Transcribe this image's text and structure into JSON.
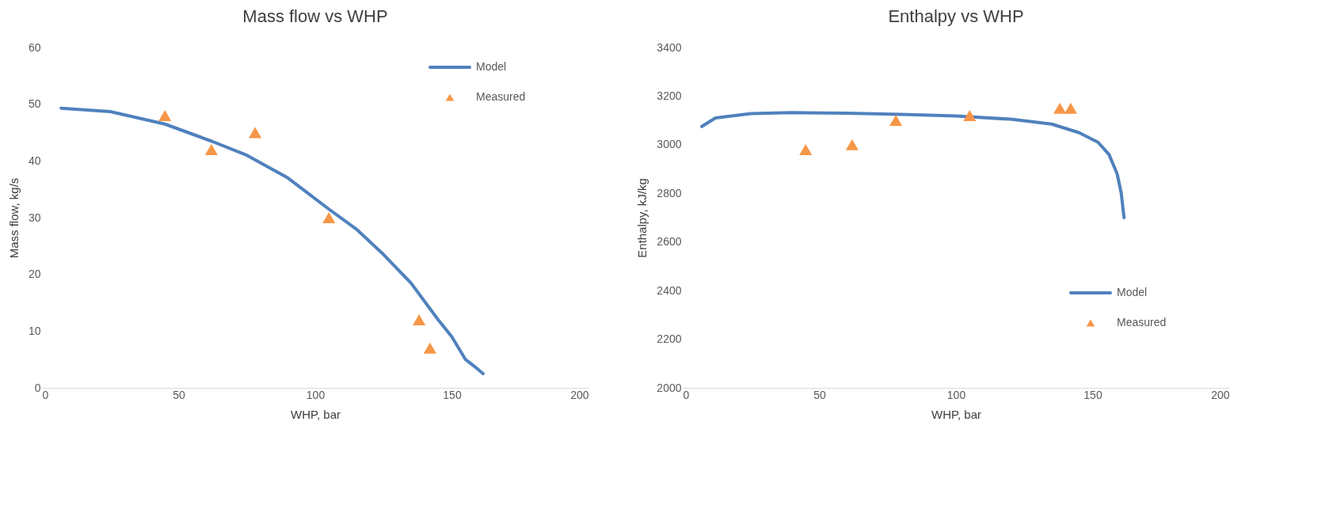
{
  "chart_data": [
    {
      "type": "line",
      "title": "Mass flow vs WHP",
      "xlabel": "WHP, bar",
      "ylabel": "Mass flow, kg/s",
      "xlim": [
        0,
        200
      ],
      "xticks": [
        0,
        50,
        100,
        150,
        200
      ],
      "ylim": [
        0,
        60
      ],
      "yticks": [
        0,
        10,
        20,
        30,
        40,
        50,
        60
      ],
      "grid": false,
      "legend": "top right",
      "series": [
        {
          "name": "Model",
          "type": "line",
          "color": "#4f81bd",
          "line_style": "solid",
          "x": [
            7,
            25,
            45,
            62,
            75,
            90,
            105,
            115,
            125,
            135,
            145,
            150,
            155,
            159,
            161.4
          ],
          "values": [
            49.3,
            48.7,
            46.5,
            43.5,
            41,
            37,
            31.5,
            28,
            23.5,
            18.5,
            12,
            9,
            5,
            3.5,
            2.5
          ]
        },
        {
          "name": "Measured",
          "type": "scatter",
          "color": "#f79646",
          "marker": "triangle",
          "x": [
            45,
            62,
            78,
            105,
            138,
            142
          ],
          "values": [
            48,
            42,
            45,
            30,
            12,
            7
          ]
        }
      ]
    },
    {
      "type": "line",
      "title": "Enthalpy vs WHP",
      "xlabel": "WHP, bar",
      "ylabel": "Enthalpy, kJ/kg",
      "xlim": [
        0,
        200
      ],
      "xticks": [
        0,
        50,
        100,
        150,
        200
      ],
      "ylim": [
        2000,
        3400
      ],
      "yticks": [
        2000,
        2200,
        2400,
        2600,
        2800,
        3000,
        3200,
        3400
      ],
      "grid": false,
      "legend": "bottom right",
      "series": [
        {
          "name": "Model",
          "type": "line",
          "color": "#4f81bd",
          "line_style": "solid",
          "x": [
            7,
            12,
            25,
            40,
            60,
            80,
            100,
            120,
            135,
            145,
            152,
            156,
            159,
            160.5,
            161.5
          ],
          "values": [
            3075,
            3110,
            3128,
            3132,
            3130,
            3125,
            3118,
            3105,
            3085,
            3050,
            3010,
            2960,
            2880,
            2800,
            2700
          ]
        },
        {
          "name": "Measured",
          "type": "scatter",
          "color": "#f79646",
          "marker": "triangle",
          "x": [
            45,
            62,
            78,
            105,
            138,
            142
          ],
          "values": [
            2980,
            3000,
            3100,
            3120,
            3150,
            3150
          ]
        }
      ]
    }
  ]
}
